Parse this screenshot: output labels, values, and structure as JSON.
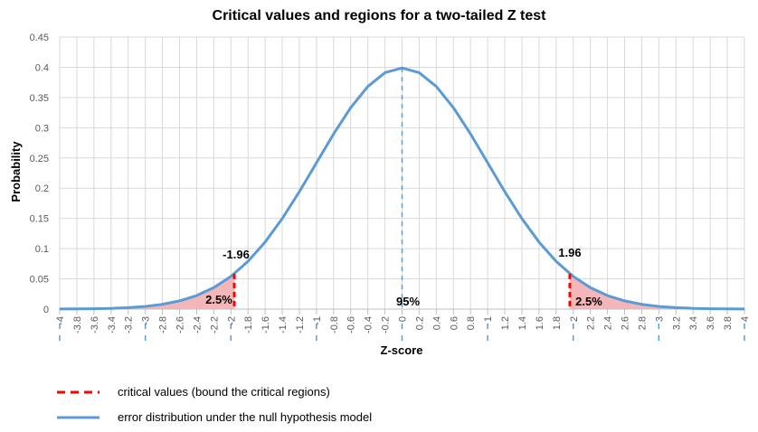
{
  "chart_data": {
    "type": "line",
    "title": "Critical values and regions for a two-tailed Z test",
    "xlabel": "Z-score",
    "ylabel": "Probability",
    "xlim": [
      -4,
      4
    ],
    "ylim": [
      0,
      0.45
    ],
    "x_tick_step": 0.2,
    "y_ticks": [
      "0",
      "0.05",
      "0.1",
      "0.15",
      "0.2",
      "0.25",
      "0.3",
      "0.35",
      "0.4",
      "0.45"
    ],
    "y_tick_values": [
      0,
      0.05,
      0.1,
      0.15,
      0.2,
      0.25,
      0.3,
      0.35,
      0.4,
      0.45
    ],
    "grid": true,
    "series": [
      {
        "name": "error distribution under the null hypothesis model",
        "color": "#5B9BD5",
        "x": [
          -4,
          -3.8,
          -3.6,
          -3.4,
          -3.2,
          -3,
          -2.8,
          -2.6,
          -2.4,
          -2.2,
          -2,
          -1.8,
          -1.6,
          -1.4,
          -1.2,
          -1,
          -0.8,
          -0.6,
          -0.4,
          -0.2,
          0,
          0.2,
          0.4,
          0.6,
          0.8,
          1,
          1.2,
          1.4,
          1.6,
          1.8,
          2,
          2.2,
          2.4,
          2.6,
          2.8,
          3,
          3.2,
          3.4,
          3.6,
          3.8,
          4
        ],
        "values": [
          0.0001,
          0.0003,
          0.0006,
          0.0012,
          0.0024,
          0.0044,
          0.0079,
          0.0136,
          0.0224,
          0.0355,
          0.054,
          0.079,
          0.1109,
          0.1497,
          0.1942,
          0.242,
          0.2897,
          0.3332,
          0.3683,
          0.391,
          0.3989,
          0.391,
          0.3683,
          0.3332,
          0.2897,
          0.242,
          0.1942,
          0.1497,
          0.1109,
          0.079,
          0.054,
          0.0355,
          0.0224,
          0.0136,
          0.0079,
          0.0044,
          0.0024,
          0.0012,
          0.0006,
          0.0003,
          0.0001
        ]
      },
      {
        "name": "critical values (bound the critical regions)",
        "color": "#FF0000",
        "x": [
          -1.96,
          1.96
        ],
        "values": [
          0.0584,
          0.0584
        ]
      }
    ],
    "region_color": "#F4B6B8",
    "annotations": {
      "left_critical": "-1.96",
      "right_critical": "1.96",
      "left_region": "2.5%",
      "right_region": "2.5%",
      "center_region": "95%"
    },
    "legend_position": "bottom-left"
  }
}
